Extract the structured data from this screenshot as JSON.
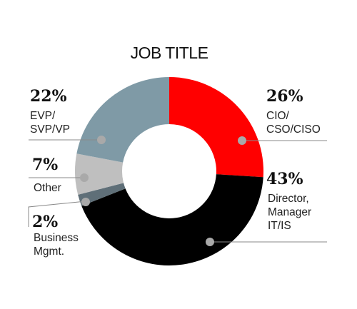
{
  "chart_data": {
    "type": "pie",
    "donut": true,
    "title": "JOB TITLE",
    "slices": [
      {
        "label_lines": [
          "CIO/",
          "CSO/CISO"
        ],
        "value": 26,
        "value_text": "26%",
        "color": "#ff0000"
      },
      {
        "label_lines": [
          "Director,",
          "Manager",
          "IT/IS"
        ],
        "value": 43,
        "value_text": "43%",
        "color": "#000000"
      },
      {
        "label_lines": [
          "Business",
          "Mgmt."
        ],
        "value": 2,
        "value_text": "2%",
        "color": "#5f6f78"
      },
      {
        "label_lines": [
          "Other"
        ],
        "value": 7,
        "value_text": "7%",
        "color": "#bfbfbf"
      },
      {
        "label_lines": [
          "EVP/",
          "SVP/VP"
        ],
        "value": 22,
        "value_text": "22%",
        "color": "#7f9aa6"
      }
    ]
  }
}
